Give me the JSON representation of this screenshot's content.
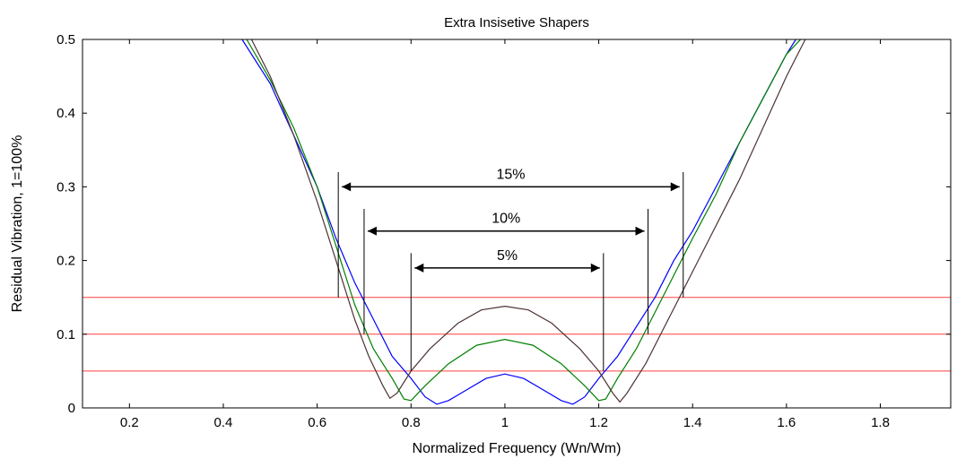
{
  "chart_data": {
    "type": "line",
    "title": "Extra Insisetive Shapers",
    "xlabel": "Normalized Frequency (Wn/Wm)",
    "ylabel": "Residual Vibration, 1=100%",
    "xlim": [
      0.1,
      1.95
    ],
    "ylim": [
      0,
      0.5
    ],
    "xticks": [
      "0.2",
      "0.4",
      "0.6",
      "0.8",
      "1",
      "1.2",
      "1.4",
      "1.6",
      "1.8"
    ],
    "yticks": [
      "0",
      "0.1",
      "0.2",
      "0.3",
      "0.4",
      "0.5"
    ],
    "grid": false,
    "legend": "none",
    "series": [
      {
        "color": "#0000ff",
        "points": [
          [
            0.44,
            0.5
          ],
          [
            0.5,
            0.44
          ],
          [
            0.55,
            0.37
          ],
          [
            0.6,
            0.3
          ],
          [
            0.64,
            0.23
          ],
          [
            0.68,
            0.17
          ],
          [
            0.72,
            0.12
          ],
          [
            0.76,
            0.07
          ],
          [
            0.8,
            0.04
          ],
          [
            0.83,
            0.015
          ],
          [
            0.855,
            0.005
          ],
          [
            0.88,
            0.01
          ],
          [
            0.92,
            0.025
          ],
          [
            0.96,
            0.04
          ],
          [
            1.0,
            0.046
          ],
          [
            1.04,
            0.04
          ],
          [
            1.08,
            0.025
          ],
          [
            1.12,
            0.01
          ],
          [
            1.145,
            0.005
          ],
          [
            1.17,
            0.015
          ],
          [
            1.2,
            0.04
          ],
          [
            1.24,
            0.07
          ],
          [
            1.28,
            0.11
          ],
          [
            1.32,
            0.15
          ],
          [
            1.36,
            0.2
          ],
          [
            1.4,
            0.24
          ],
          [
            1.45,
            0.3
          ],
          [
            1.5,
            0.36
          ],
          [
            1.55,
            0.42
          ],
          [
            1.6,
            0.48
          ],
          [
            1.62,
            0.5
          ]
        ]
      },
      {
        "color": "#008000",
        "points": [
          [
            0.45,
            0.5
          ],
          [
            0.5,
            0.445
          ],
          [
            0.55,
            0.38
          ],
          [
            0.6,
            0.3
          ],
          [
            0.64,
            0.22
          ],
          [
            0.68,
            0.14
          ],
          [
            0.72,
            0.08
          ],
          [
            0.76,
            0.04
          ],
          [
            0.785,
            0.012
          ],
          [
            0.8,
            0.01
          ],
          [
            0.83,
            0.03
          ],
          [
            0.88,
            0.06
          ],
          [
            0.94,
            0.085
          ],
          [
            1.0,
            0.093
          ],
          [
            1.06,
            0.085
          ],
          [
            1.12,
            0.06
          ],
          [
            1.17,
            0.03
          ],
          [
            1.2,
            0.01
          ],
          [
            1.215,
            0.012
          ],
          [
            1.24,
            0.04
          ],
          [
            1.28,
            0.08
          ],
          [
            1.32,
            0.13
          ],
          [
            1.36,
            0.18
          ],
          [
            1.4,
            0.23
          ],
          [
            1.45,
            0.29
          ],
          [
            1.5,
            0.36
          ],
          [
            1.55,
            0.42
          ],
          [
            1.6,
            0.48
          ],
          [
            1.63,
            0.5
          ]
        ]
      },
      {
        "color": "#4d3333",
        "points": [
          [
            0.46,
            0.5
          ],
          [
            0.5,
            0.45
          ],
          [
            0.55,
            0.37
          ],
          [
            0.6,
            0.28
          ],
          [
            0.64,
            0.2
          ],
          [
            0.68,
            0.12
          ],
          [
            0.71,
            0.07
          ],
          [
            0.74,
            0.03
          ],
          [
            0.755,
            0.013
          ],
          [
            0.77,
            0.02
          ],
          [
            0.8,
            0.05
          ],
          [
            0.84,
            0.08
          ],
          [
            0.9,
            0.115
          ],
          [
            0.95,
            0.133
          ],
          [
            1.0,
            0.138
          ],
          [
            1.05,
            0.133
          ],
          [
            1.1,
            0.115
          ],
          [
            1.16,
            0.08
          ],
          [
            1.2,
            0.05
          ],
          [
            1.23,
            0.02
          ],
          [
            1.245,
            0.008
          ],
          [
            1.26,
            0.02
          ],
          [
            1.3,
            0.06
          ],
          [
            1.34,
            0.11
          ],
          [
            1.38,
            0.16
          ],
          [
            1.42,
            0.21
          ],
          [
            1.46,
            0.26
          ],
          [
            1.5,
            0.31
          ],
          [
            1.55,
            0.38
          ],
          [
            1.6,
            0.45
          ],
          [
            1.64,
            0.5
          ]
        ]
      }
    ],
    "hlines": [
      {
        "y": 0.15,
        "color": "#ff0000"
      },
      {
        "y": 0.1,
        "color": "#ff0000"
      },
      {
        "y": 0.05,
        "color": "#ff0000"
      }
    ],
    "annotations": [
      {
        "label": "15%",
        "x_left": 0.645,
        "x_right": 1.38,
        "arrow_y": 0.3,
        "bar_top": 0.32,
        "left_bar_bottom": 0.15,
        "right_bar_bottom": 0.15
      },
      {
        "label": "10%",
        "x_left": 0.7,
        "x_right": 1.305,
        "arrow_y": 0.24,
        "bar_top": 0.27,
        "left_bar_bottom": 0.1,
        "right_bar_bottom": 0.1
      },
      {
        "label": "5%",
        "x_left": 0.8,
        "x_right": 1.21,
        "arrow_y": 0.19,
        "bar_top": 0.21,
        "left_bar_bottom": 0.05,
        "right_bar_bottom": 0.05
      }
    ]
  }
}
